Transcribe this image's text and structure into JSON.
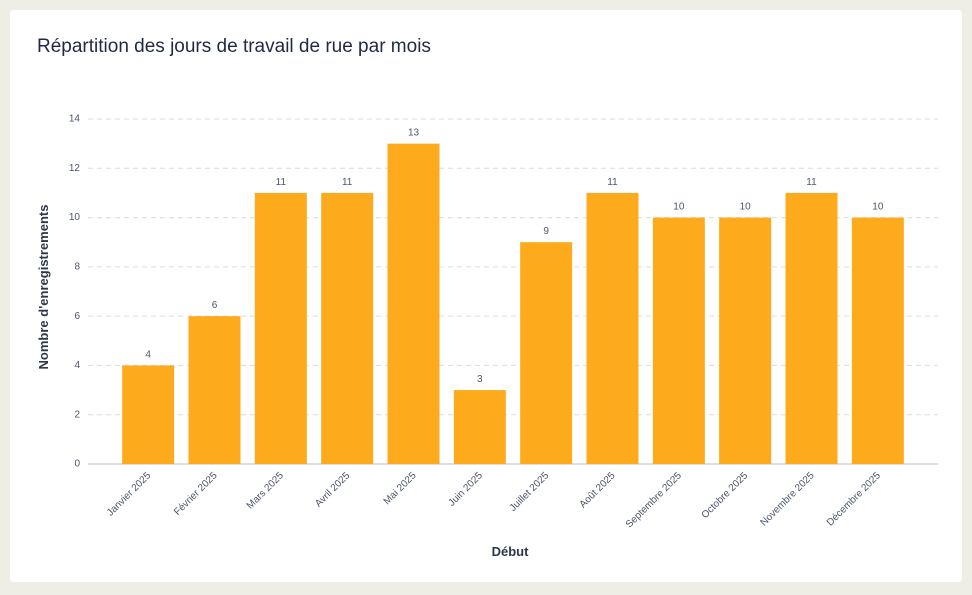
{
  "chart_data": {
    "type": "bar",
    "title": "Répartition des jours de travail de rue par mois",
    "x_label": "Début",
    "y_label": "Nombre d'enregistrements",
    "categories": [
      "Janvier 2025",
      "Février 2025",
      "Mars 2025",
      "Avril 2025",
      "Mai 2025",
      "Juin 2025",
      "Juillet 2025",
      "Août 2025",
      "Septembre 2025",
      "Octobre 2025",
      "Novembre 2025",
      "Décembre 2025"
    ],
    "values": [
      4,
      6,
      11,
      11,
      13,
      3,
      9,
      11,
      10,
      10,
      11,
      10
    ],
    "color": "#fdaa1c",
    "ylim": [
      0,
      14
    ],
    "yticks": [
      0,
      2,
      4,
      6,
      8,
      10,
      12,
      14
    ],
    "grid": true
  }
}
